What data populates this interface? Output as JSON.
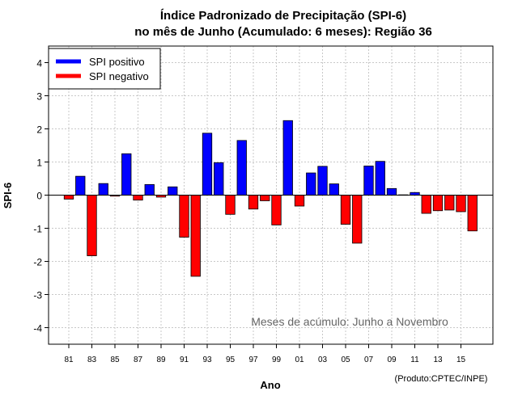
{
  "chart_data": {
    "type": "bar",
    "title_line1": "Índice Padronizado de Precipitação (SPI-6)",
    "title_line2": "no mês de Junho (Acumulado: 6 meses): Região 36",
    "xlabel": "Ano",
    "ylabel": "SPI-6",
    "ylim": [
      -4.5,
      4.5
    ],
    "yticks": [
      -4,
      -3,
      -2,
      -1,
      0,
      1,
      2,
      3,
      4
    ],
    "ytick_labels": [
      "-4",
      "-3",
      "-2",
      "-1",
      "0",
      "1",
      "2",
      "3",
      "4"
    ],
    "grid": true,
    "legend": {
      "placement": "top-left",
      "entries": [
        {
          "label": "SPI positivo",
          "color": "#0000ff"
        },
        {
          "label": "SPI negativo",
          "color": "#ff0000"
        }
      ]
    },
    "categories": [
      "1981",
      "1982",
      "1983",
      "1984",
      "1985",
      "1986",
      "1987",
      "1988",
      "1989",
      "1990",
      "1991",
      "1992",
      "1993",
      "1994",
      "1995",
      "1996",
      "1997",
      "1998",
      "1999",
      "2000",
      "2001",
      "2002",
      "2003",
      "2004",
      "2005",
      "2006",
      "2007",
      "2008",
      "2009",
      "2010",
      "2011",
      "2012",
      "2013",
      "2014",
      "2015",
      "2016"
    ],
    "values": [
      -0.12,
      0.57,
      -1.83,
      0.35,
      -0.03,
      1.25,
      -0.15,
      0.32,
      -0.06,
      0.25,
      -1.27,
      -2.45,
      1.87,
      0.98,
      -0.58,
      1.65,
      -0.42,
      -0.17,
      -0.9,
      2.25,
      -0.33,
      0.67,
      0.87,
      0.34,
      -0.88,
      -1.45,
      0.88,
      1.02,
      0.2,
      0.01,
      0.08,
      -0.55,
      -0.47,
      -0.45,
      -0.5,
      -1.08
    ],
    "xtick_labels": [
      "81",
      "83",
      "85",
      "87",
      "89",
      "91",
      "93",
      "95",
      "97",
      "99",
      "01",
      "03",
      "05",
      "07",
      "09",
      "11",
      "13",
      "15"
    ],
    "xtick_years": [
      "1981",
      "1983",
      "1985",
      "1987",
      "1989",
      "1991",
      "1993",
      "1995",
      "1997",
      "1999",
      "2001",
      "2003",
      "2005",
      "2007",
      "2009",
      "2011",
      "2013",
      "2015"
    ],
    "annotation": "Meses de acúmulo: Junho a Novembro",
    "credit": "(Produto:CPTEC/INPE)",
    "colors": {
      "positive": "#0000ff",
      "negative": "#ff0000",
      "grid": "#c8c8c8"
    }
  }
}
